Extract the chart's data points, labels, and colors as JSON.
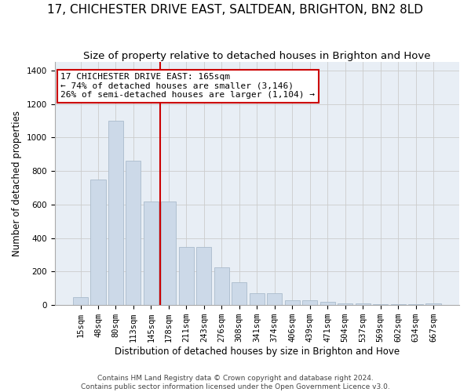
{
  "title": "17, CHICHESTER DRIVE EAST, SALTDEAN, BRIGHTON, BN2 8LD",
  "subtitle": "Size of property relative to detached houses in Brighton and Hove",
  "xlabel": "Distribution of detached houses by size in Brighton and Hove",
  "ylabel": "Number of detached properties",
  "footer": "Contains HM Land Registry data © Crown copyright and database right 2024.\nContains public sector information licensed under the Open Government Licence v3.0.",
  "bar_color": "#ccd9e8",
  "bar_edge_color": "#aabbcc",
  "categories": [
    "15sqm",
    "48sqm",
    "80sqm",
    "113sqm",
    "145sqm",
    "178sqm",
    "211sqm",
    "243sqm",
    "276sqm",
    "308sqm",
    "341sqm",
    "374sqm",
    "406sqm",
    "439sqm",
    "471sqm",
    "504sqm",
    "537sqm",
    "569sqm",
    "602sqm",
    "634sqm",
    "667sqm"
  ],
  "values": [
    50,
    750,
    1100,
    860,
    620,
    620,
    345,
    345,
    225,
    135,
    70,
    70,
    30,
    30,
    20,
    10,
    10,
    5,
    5,
    5,
    10
  ],
  "vline_x": 4.5,
  "vline_color": "#cc0000",
  "annotation_text": "17 CHICHESTER DRIVE EAST: 165sqm\n← 74% of detached houses are smaller (3,146)\n26% of semi-detached houses are larger (1,104) →",
  "annotation_box_color": "#cc0000",
  "ylim": [
    0,
    1450
  ],
  "yticks": [
    0,
    200,
    400,
    600,
    800,
    1000,
    1200,
    1400
  ],
  "grid_color": "#cccccc",
  "background_color": "#e8eef5",
  "title_fontsize": 11,
  "subtitle_fontsize": 9.5,
  "ylabel_fontsize": 8.5,
  "xlabel_fontsize": 8.5,
  "tick_fontsize": 7.5,
  "annotation_fontsize": 8,
  "footer_fontsize": 6.5
}
